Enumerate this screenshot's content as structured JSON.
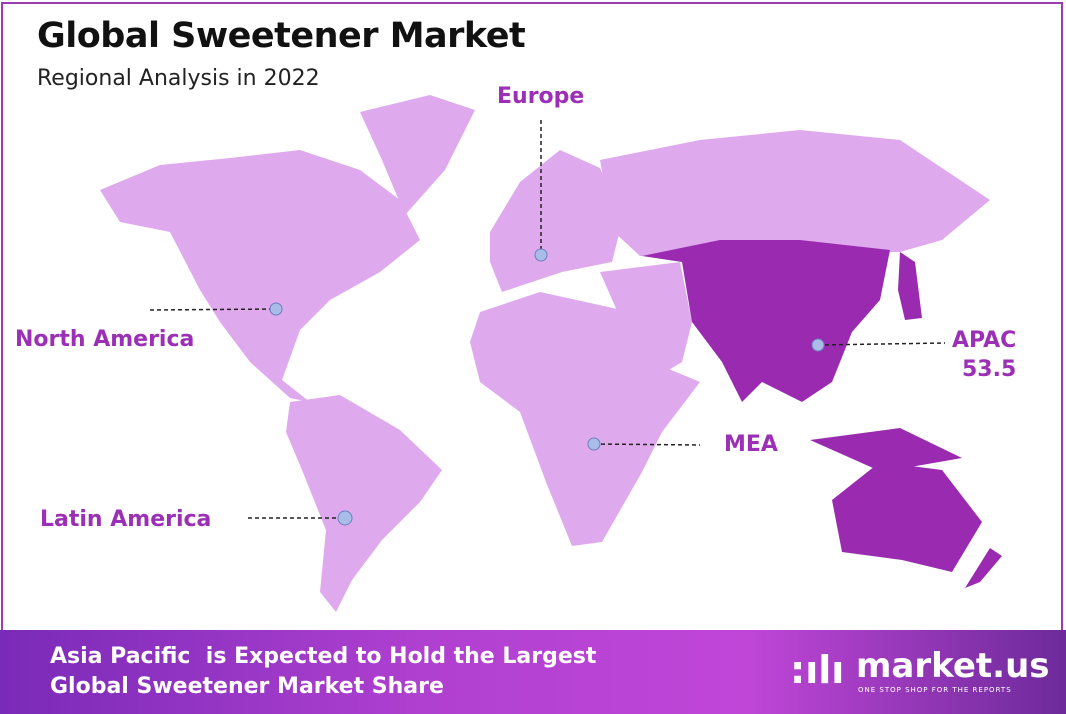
{
  "header": {
    "title": "Global Sweetener Market",
    "subtitle": "Regional Analysis in 2022"
  },
  "colors": {
    "region_light": "#dfa9ee",
    "region_highlight": "#9a2bb0",
    "label": "#9b2fb5",
    "marker": "#a9bde8"
  },
  "regions": [
    {
      "name": "Europe",
      "value": null,
      "highlighted": false
    },
    {
      "name": "North America",
      "value": null,
      "highlighted": false
    },
    {
      "name": "APAC",
      "value": "53.5",
      "highlighted": true
    },
    {
      "name": "MEA",
      "value": null,
      "highlighted": false
    },
    {
      "name": "Latin America",
      "value": null,
      "highlighted": false
    }
  ],
  "banner": {
    "line1": "Asia Pacific  is Expected to Hold the Largest",
    "line2": "Global Sweetener Market Share"
  },
  "logo": {
    "name": "market.us",
    "tagline": "ONE STOP SHOP FOR THE REPORTS"
  }
}
